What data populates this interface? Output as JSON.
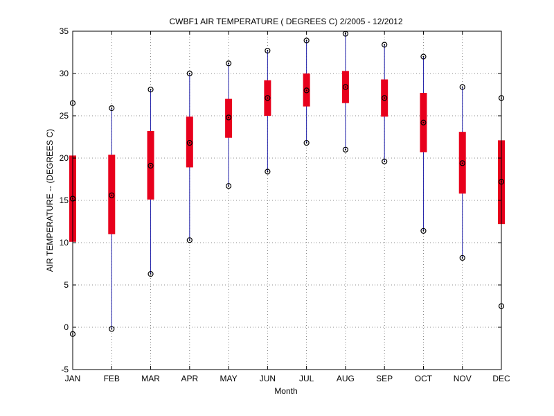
{
  "chart_data": {
    "type": "box",
    "title": "CWBF1  AIR TEMPERATURE ( DEGREES C) 2/2005 - 12/2012",
    "xlabel": "Month",
    "ylabel": "AIR TEMPERATURE -- (DEGREES C)",
    "ylim": [
      -5,
      35
    ],
    "yticks": [
      -5,
      0,
      5,
      10,
      15,
      20,
      25,
      30,
      35
    ],
    "grid": true,
    "categories": [
      "JAN",
      "FEB",
      "MAR",
      "APR",
      "MAY",
      "JUN",
      "JUL",
      "AUG",
      "SEP",
      "OCT",
      "NOV",
      "DEC"
    ],
    "min": [
      -0.8,
      -0.2,
      6.3,
      10.3,
      16.7,
      18.4,
      21.8,
      21.0,
      19.6,
      11.4,
      8.2,
      2.5
    ],
    "q1": [
      10.1,
      11.0,
      15.1,
      18.9,
      22.4,
      25.0,
      26.1,
      26.5,
      24.9,
      20.7,
      15.8,
      12.2
    ],
    "median": [
      15.2,
      15.6,
      19.1,
      21.8,
      24.8,
      27.1,
      28.0,
      28.4,
      27.1,
      24.2,
      19.4,
      17.2
    ],
    "q3": [
      20.3,
      20.4,
      23.2,
      24.9,
      27.0,
      29.2,
      30.0,
      30.3,
      29.3,
      27.7,
      23.1,
      22.1
    ],
    "max": [
      26.5,
      25.9,
      28.1,
      30.0,
      31.2,
      32.7,
      33.9,
      34.7,
      33.4,
      32.0,
      28.4,
      27.1
    ],
    "colors": {
      "box": "#e8001c",
      "whisker": "#1f1fa8",
      "marker": "#000000",
      "grid": "#666666"
    }
  }
}
